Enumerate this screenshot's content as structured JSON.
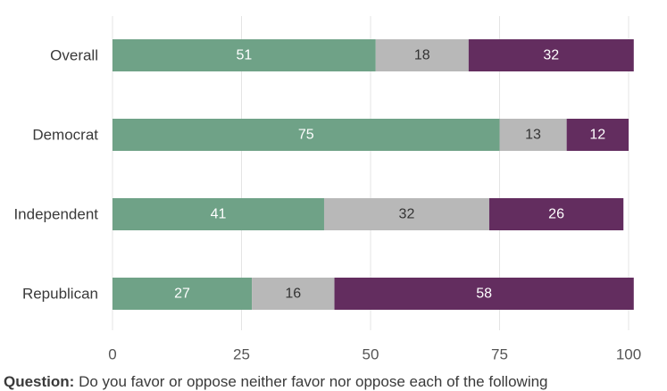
{
  "chart_data": {
    "type": "bar",
    "orientation": "horizontal",
    "stacked": true,
    "categories": [
      "Overall",
      "Democrat",
      "Independent",
      "Republican"
    ],
    "series": [
      {
        "values": [
          51,
          75,
          41,
          27
        ],
        "color": "#6fa287",
        "label_color": "#ffffff"
      },
      {
        "values": [
          18,
          13,
          32,
          16
        ],
        "color": "#b8b8b8",
        "label_color": "#333333"
      },
      {
        "values": [
          32,
          12,
          26,
          58
        ],
        "color": "#632d5f",
        "label_color": "#ffffff"
      }
    ],
    "xlim": [
      0,
      100
    ],
    "xticks": [
      0,
      25,
      50,
      75,
      100
    ],
    "grid": "vertical",
    "legend": "none"
  },
  "footer": {
    "question_prefix": "Question:",
    "question_text": " Do you favor or oppose neither favor nor oppose each of the following"
  }
}
